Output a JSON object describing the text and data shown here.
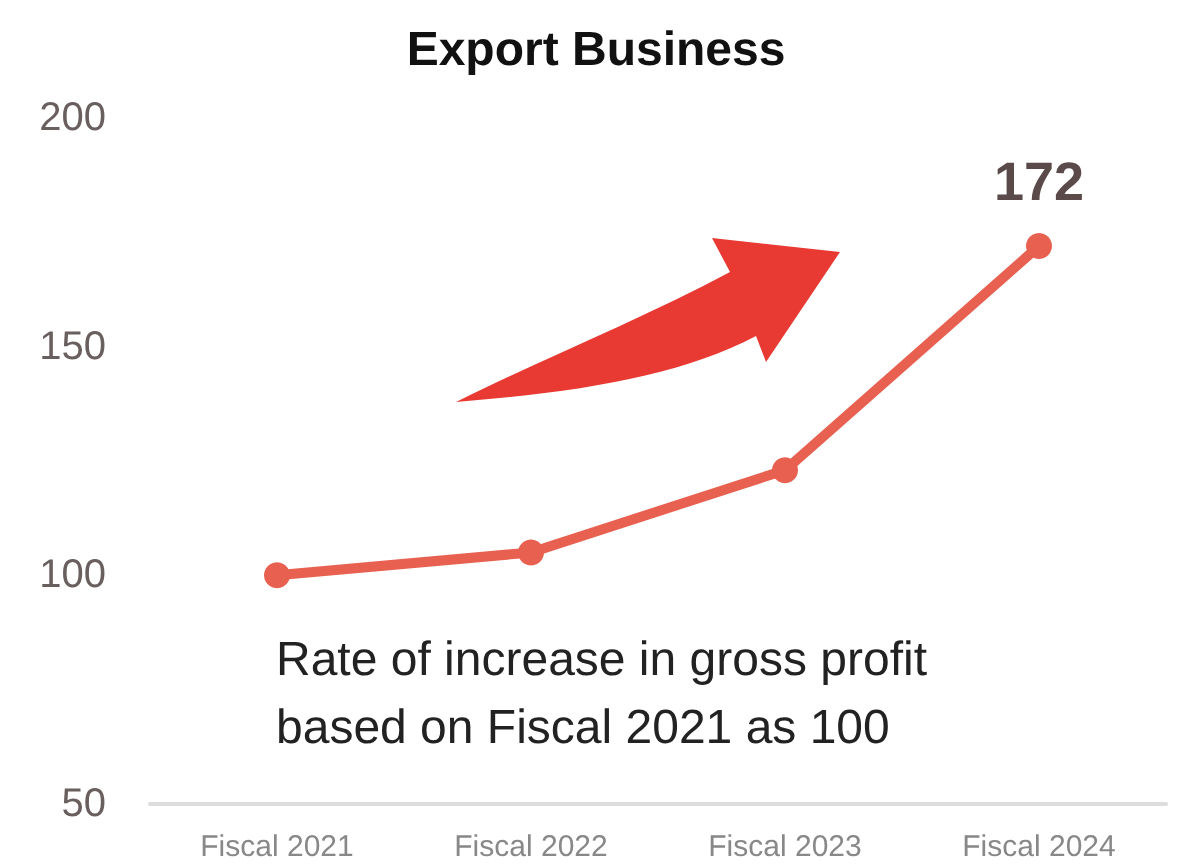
{
  "chart_data": {
    "type": "line",
    "title": "Export Business",
    "categories": [
      "Fiscal 2021",
      "Fiscal 2022",
      "Fiscal 2023",
      "Fiscal 2024"
    ],
    "series": [
      {
        "color": "#e8604f",
        "values": [
          100,
          105,
          123,
          172
        ],
        "value_labels": [
          null,
          null,
          null,
          "172"
        ]
      }
    ],
    "ylim": [
      50,
      200
    ],
    "yticks": [
      50,
      100,
      150,
      200
    ],
    "grid": false,
    "marker": "circle",
    "line_style": "solid",
    "annotations": [
      "Rate of increase in gross profit\nbased on Fiscal 2021 as 100"
    ]
  }
}
